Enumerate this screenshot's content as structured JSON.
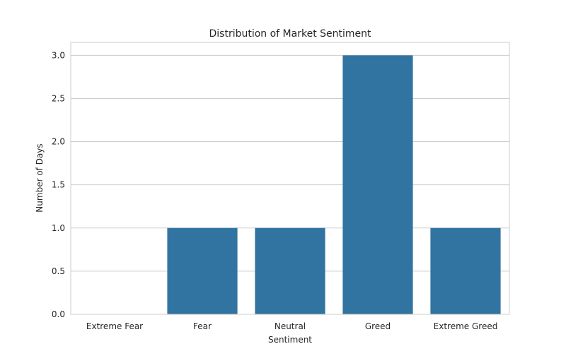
{
  "chart_data": {
    "type": "bar",
    "title": "Distribution of Market Sentiment",
    "xlabel": "Sentiment",
    "ylabel": "Number of Days",
    "categories": [
      "Extreme Fear",
      "Fear",
      "Neutral",
      "Greed",
      "Extreme Greed"
    ],
    "values": [
      0,
      1,
      1,
      3,
      1
    ],
    "ylim": [
      0,
      3.15
    ],
    "yticks": [
      "0.0",
      "0.5",
      "1.0",
      "1.5",
      "2.0",
      "2.5",
      "3.0"
    ],
    "grid": true,
    "legend": "none",
    "colors": {
      "bar": "#3274a1",
      "grid": "#cccccc",
      "axis": "#cccccc",
      "text": "#262626"
    }
  }
}
